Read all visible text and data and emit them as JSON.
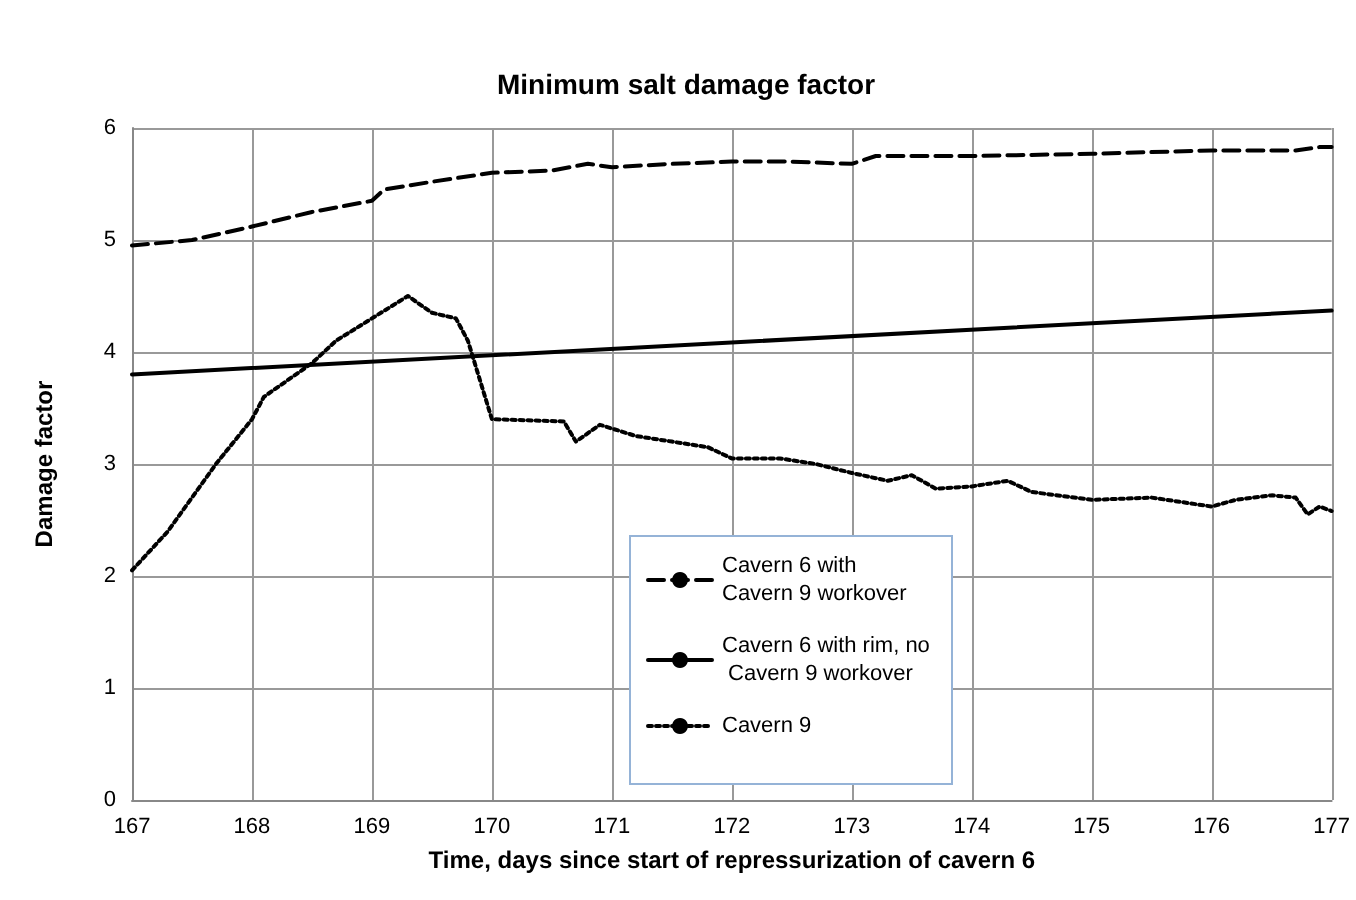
{
  "chart_data": {
    "type": "line",
    "title": "Minimum salt damage factor",
    "xlabel": "Time, days since start of repressurization of cavern 6",
    "ylabel": "Damage factor",
    "xlim": [
      167,
      177
    ],
    "xticks": [
      167,
      168,
      169,
      170,
      171,
      172,
      173,
      174,
      175,
      176,
      177
    ],
    "ylim": [
      0,
      6
    ],
    "yticks": [
      0,
      1,
      2,
      3,
      4,
      5,
      6
    ],
    "grid": true,
    "legend": "bottom",
    "marker": "none",
    "series": [
      {
        "name": "Cavern 6 with Cavern 9 workover",
        "color": "#000000",
        "line_style": "dashed",
        "x": [
          167,
          167.5,
          168,
          168.5,
          169,
          169.1,
          169.5,
          170,
          170.5,
          170.8,
          171,
          171.5,
          172,
          172.5,
          173,
          173.2,
          174,
          175,
          176,
          176.7,
          176.9,
          177
        ],
        "values": [
          4.95,
          5.0,
          5.12,
          5.25,
          5.35,
          5.45,
          5.52,
          5.6,
          5.62,
          5.68,
          5.65,
          5.68,
          5.7,
          5.7,
          5.68,
          5.75,
          5.75,
          5.77,
          5.8,
          5.8,
          5.83,
          5.83
        ]
      },
      {
        "name": "Cavern 6 with rim, no Cavern 9 workover",
        "color": "#000000",
        "line_style": "solid",
        "x": [
          167,
          177
        ],
        "values": [
          3.8,
          4.37
        ]
      },
      {
        "name": "Cavern 9",
        "color": "#000000",
        "line_style": "dotted",
        "x": [
          167,
          167.3,
          167.7,
          168,
          168.1,
          168.5,
          168.7,
          169,
          169.3,
          169.5,
          169.7,
          169.8,
          170,
          170.6,
          170.7,
          170.9,
          171.2,
          171.5,
          171.8,
          172,
          172.4,
          172.7,
          173,
          173.3,
          173.5,
          173.7,
          174,
          174.3,
          174.5,
          175,
          175.5,
          176,
          176.2,
          176.5,
          176.7,
          176.8,
          176.9,
          177
        ],
        "values": [
          2.05,
          2.4,
          3.0,
          3.4,
          3.6,
          3.9,
          4.1,
          4.3,
          4.5,
          4.35,
          4.3,
          4.1,
          3.4,
          3.38,
          3.2,
          3.35,
          3.25,
          3.2,
          3.15,
          3.05,
          3.05,
          3.0,
          2.92,
          2.85,
          2.9,
          2.78,
          2.8,
          2.85,
          2.75,
          2.68,
          2.7,
          2.62,
          2.68,
          2.72,
          2.7,
          2.55,
          2.62,
          2.58
        ]
      }
    ]
  }
}
